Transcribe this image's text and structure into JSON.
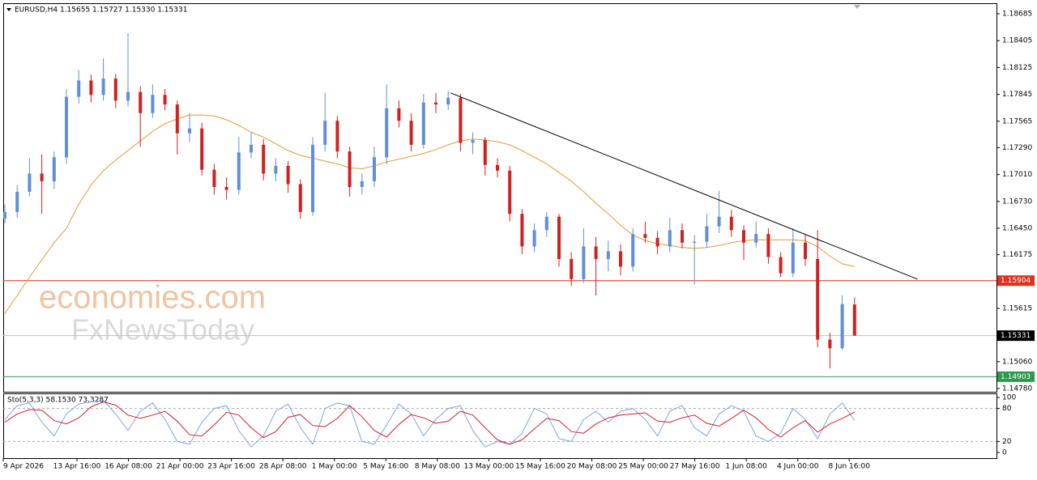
{
  "chart_data": {
    "type": "candlestick",
    "header": "EURUSD,H4  1.15655 1.15727 1.15330 1.15331",
    "bull_color": "#5f8fd6",
    "bear_color": "#d41f1f",
    "ylim": [
      1.14746,
      1.18795
    ],
    "yticks": [
      1.18685,
      1.18405,
      1.18125,
      1.17845,
      1.17565,
      {
        "value": 1.1729,
        "label": "1.17290"
      },
      {
        "value": 1.1701,
        "label": "1.17010"
      },
      {
        "value": 1.1673,
        "label": "1.16730"
      },
      {
        "value": 1.1645,
        "label": "1.16450"
      },
      1.16175,
      1.15615,
      {
        "value": 1.1506,
        "label": "1.15060"
      },
      {
        "value": 1.1478,
        "label": "1.14780"
      }
    ],
    "candles": [
      [
        1.1655,
        1.167,
        1.165,
        1.1662
      ],
      [
        1.1662,
        1.169,
        1.1656,
        1.1683
      ],
      [
        1.1683,
        1.1718,
        1.1678,
        1.1702
      ],
      [
        1.1702,
        1.1722,
        1.166,
        1.1694
      ],
      [
        1.1694,
        1.1725,
        1.1686,
        1.1719
      ],
      [
        1.1719,
        1.179,
        1.1712,
        1.1782
      ],
      [
        1.1782,
        1.181,
        1.1775,
        1.1799
      ],
      [
        1.1799,
        1.1805,
        1.1776,
        1.1784
      ],
      [
        1.1784,
        1.1822,
        1.1778,
        1.1801
      ],
      [
        1.1801,
        1.1806,
        1.177,
        1.1778
      ],
      [
        1.1778,
        1.1848,
        1.1772,
        1.1787
      ],
      [
        1.1787,
        1.1793,
        1.173,
        1.1765
      ],
      [
        1.1765,
        1.1795,
        1.176,
        1.1784
      ],
      [
        1.1784,
        1.179,
        1.1768,
        1.1774
      ],
      [
        1.1774,
        1.1778,
        1.1722,
        1.1744
      ],
      [
        1.1744,
        1.1765,
        1.1735,
        1.1749
      ],
      [
        1.1749,
        1.1755,
        1.17,
        1.1706
      ],
      [
        1.1706,
        1.1712,
        1.168,
        1.1688
      ],
      [
        1.1688,
        1.1698,
        1.1675,
        1.1685
      ],
      [
        1.1685,
        1.174,
        1.168,
        1.1724
      ],
      [
        1.1724,
        1.1745,
        1.1718,
        1.1732
      ],
      [
        1.1732,
        1.1738,
        1.1695,
        1.1702
      ],
      [
        1.1702,
        1.1718,
        1.1694,
        1.171
      ],
      [
        1.171,
        1.1715,
        1.1682,
        1.1691
      ],
      [
        1.1691,
        1.1696,
        1.1655,
        1.1662
      ],
      [
        1.1662,
        1.174,
        1.1658,
        1.1732
      ],
      [
        1.1732,
        1.1786,
        1.1725,
        1.1757
      ],
      [
        1.1757,
        1.1762,
        1.1718,
        1.1725
      ],
      [
        1.1725,
        1.173,
        1.1678,
        1.1688
      ],
      [
        1.1688,
        1.1702,
        1.168,
        1.1694
      ],
      [
        1.1694,
        1.173,
        1.1688,
        1.1719
      ],
      [
        1.1719,
        1.1795,
        1.1712,
        1.177
      ],
      [
        1.177,
        1.1778,
        1.175,
        1.1757
      ],
      [
        1.1757,
        1.1765,
        1.1725,
        1.1732
      ],
      [
        1.1732,
        1.1785,
        1.1728,
        1.1776
      ],
      [
        1.1776,
        1.1786,
        1.1765,
        1.1774
      ],
      [
        1.1774,
        1.1788,
        1.1768,
        1.1781
      ],
      [
        1.1781,
        1.1785,
        1.1725,
        1.1734
      ],
      [
        1.1734,
        1.1745,
        1.1722,
        1.1737
      ],
      [
        1.1737,
        1.174,
        1.17,
        1.1711
      ],
      [
        1.1711,
        1.1718,
        1.1698,
        1.1705
      ],
      [
        1.1705,
        1.171,
        1.1652,
        1.166
      ],
      [
        1.166,
        1.1665,
        1.1618,
        1.1626
      ],
      [
        1.1626,
        1.165,
        1.162,
        1.1643
      ],
      [
        1.1643,
        1.1662,
        1.1636,
        1.1657
      ],
      [
        1.1657,
        1.166,
        1.1605,
        1.1613
      ],
      [
        1.1613,
        1.162,
        1.1585,
        1.1592
      ],
      [
        1.1592,
        1.1645,
        1.1588,
        1.1626
      ],
      [
        1.1626,
        1.1636,
        1.1575,
        1.1613
      ],
      [
        1.1613,
        1.1632,
        1.16,
        1.1621
      ],
      [
        1.1621,
        1.1628,
        1.1596,
        1.1605
      ],
      [
        1.1605,
        1.1645,
        1.16,
        1.1639
      ],
      [
        1.1639,
        1.1652,
        1.163,
        1.1635
      ],
      [
        1.1635,
        1.1642,
        1.1618,
        1.1626
      ],
      [
        1.1626,
        1.1656,
        1.162,
        1.1643
      ],
      [
        1.1643,
        1.165,
        1.1624,
        1.163
      ],
      [
        1.163,
        1.1638,
        1.1586,
        1.1631
      ],
      [
        1.1631,
        1.166,
        1.1625,
        1.1647
      ],
      [
        1.1647,
        1.1684,
        1.164,
        1.1657
      ],
      [
        1.1657,
        1.1664,
        1.1636,
        1.1643
      ],
      [
        1.1643,
        1.1648,
        1.1612,
        1.163
      ],
      [
        1.163,
        1.1652,
        1.1625,
        1.1639
      ],
      [
        1.1639,
        1.1645,
        1.1608,
        1.1615
      ],
      [
        1.1615,
        1.162,
        1.1594,
        1.1598
      ],
      [
        1.1598,
        1.1645,
        1.1594,
        1.163
      ],
      [
        1.163,
        1.1638,
        1.1606,
        1.1613
      ],
      [
        1.1613,
        1.1643,
        1.1521,
        1.1529
      ],
      [
        1.1529,
        1.1536,
        1.1499,
        1.152
      ],
      [
        1.152,
        1.1575,
        1.1518,
        1.1566
      ],
      [
        1.15655,
        1.15727,
        1.1533,
        1.15331
      ]
    ],
    "ma": {
      "color": "#e39a3b",
      "values": [
        1.1556,
        1.1575,
        1.1594,
        1.1612,
        1.163,
        1.1645,
        1.167,
        1.169,
        1.1705,
        1.1716,
        1.1726,
        1.1736,
        1.1746,
        1.1754,
        1.1759,
        1.1763,
        1.1763,
        1.1762,
        1.1758,
        1.1752,
        1.1745,
        1.174,
        1.1733,
        1.1726,
        1.1721,
        1.1718,
        1.1715,
        1.1712,
        1.1708,
        1.1707,
        1.171,
        1.1714,
        1.1717,
        1.172,
        1.1723,
        1.1727,
        1.1732,
        1.1736,
        1.1738,
        1.1737,
        1.1735,
        1.1732,
        1.1726,
        1.1719,
        1.1712,
        1.1703,
        1.1694,
        1.1683,
        1.1671,
        1.166,
        1.1648,
        1.1638,
        1.1632,
        1.1629,
        1.1627,
        1.1625,
        1.1624,
        1.1625,
        1.1627,
        1.163,
        1.1632,
        1.1633,
        1.1633,
        1.1633,
        1.1633,
        1.1632,
        1.1626,
        1.1616,
        1.1608,
        1.1605
      ]
    },
    "trendline": {
      "color": "#000000",
      "x": [
        36.2,
        74.1
      ],
      "y": [
        1.1786,
        1.1592
      ]
    },
    "hlines": [
      {
        "value": 1.15904,
        "color": "#e0301e",
        "box": "#e0301e"
      },
      {
        "value": 1.15331,
        "color": "#c0c0c0",
        "box": "#000000"
      },
      {
        "value": 1.14903,
        "color": "#3a9a5a",
        "box": "#2f9a4f"
      }
    ],
    "xlabels": [
      "9 Apr 2026",
      "13 Apr 16:00",
      "16 Apr 08:00",
      "21 Apr 00:00",
      "23 Apr 16:00",
      "28 Apr 08:00",
      "1 May 00:00",
      "5 May 16:00",
      "8 May 08:00",
      "13 May 00:00",
      "15 May 16:00",
      "20 May 08:00",
      "25 May 00:00",
      "27 May 16:00",
      "1 Jun 08:00",
      "4 Jun 00:00",
      "8 Jun 16:00"
    ],
    "watermark": [
      "economies.com",
      "FxNewsToday"
    ],
    "stochastic": {
      "title": "Sto(5,3,3) 58.1530 73.3287",
      "ylim": [
        -10.3,
        107.4
      ],
      "yticks": [
        100,
        80,
        20,
        0
      ],
      "levels": [
        80,
        20
      ],
      "series": [
        {
          "color": "#7ea4df",
          "values": [
            60,
            85,
            90,
            55,
            30,
            70,
            88,
            92,
            95,
            70,
            40,
            75,
            90,
            60,
            20,
            15,
            55,
            80,
            85,
            40,
            10,
            30,
            75,
            88,
            45,
            15,
            80,
            90,
            85,
            20,
            15,
            50,
            88,
            70,
            30,
            60,
            80,
            85,
            40,
            10,
            20,
            15,
            35,
            80,
            70,
            25,
            20,
            60,
            75,
            55,
            75,
            80,
            60,
            30,
            75,
            85,
            45,
            30,
            70,
            85,
            75,
            30,
            20,
            35,
            80,
            60,
            25,
            70,
            90,
            58.153
          ]
        },
        {
          "color": "#d0202e",
          "values": [
            55,
            70,
            78,
            77,
            58,
            52,
            63,
            83,
            92,
            86,
            68,
            62,
            68,
            75,
            57,
            32,
            30,
            50,
            73,
            68,
            45,
            27,
            38,
            64,
            69,
            49,
            47,
            62,
            85,
            65,
            40,
            28,
            51,
            69,
            63,
            53,
            57,
            75,
            68,
            45,
            23,
            15,
            23,
            43,
            62,
            58,
            38,
            35,
            52,
            63,
            68,
            70,
            72,
            57,
            55,
            63,
            68,
            53,
            48,
            62,
            77,
            63,
            42,
            28,
            45,
            58,
            37,
            52,
            62,
            73.3287
          ]
        }
      ]
    }
  }
}
